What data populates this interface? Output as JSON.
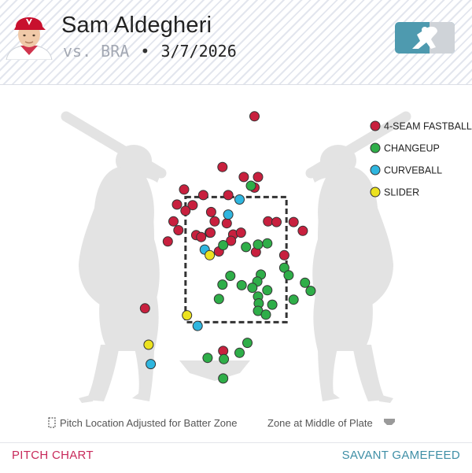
{
  "header": {
    "player_name": "Sam Aldegheri",
    "opponent_prefix": "vs. BRA",
    "separator": "•",
    "date": "3/7/2026",
    "team_cap_color": "#c8102e",
    "logo_color": "#4e9aaf"
  },
  "colors": {
    "four_seam": "#c8203e",
    "changeup": "#2fae49",
    "curveball": "#2fb6df",
    "slider": "#ece21f",
    "silhouette": "#e3e3e3",
    "point_stroke": "#333333"
  },
  "chart_data": {
    "type": "scatter",
    "title": "",
    "xlabel": "",
    "ylabel": "",
    "x_unit": "plate_x (ft, catcher view)",
    "y_unit": "plate_z (ft)",
    "xlim": [
      -3.32,
      3.32
    ],
    "ylim": [
      -0.42,
      5.29
    ],
    "strike_zone": {
      "x": [
        -0.71,
        0.71
      ],
      "z": [
        1.5,
        3.5
      ]
    },
    "legend_position": "top-right",
    "series": [
      {
        "name": "4-SEAM FASTBALL",
        "key": "four_seam",
        "points": [
          [
            0.26,
            4.79
          ],
          [
            -0.19,
            3.98
          ],
          [
            0.11,
            3.82
          ],
          [
            0.31,
            3.82
          ],
          [
            0.26,
            3.65
          ],
          [
            -0.73,
            3.62
          ],
          [
            -0.46,
            3.53
          ],
          [
            -0.11,
            3.53
          ],
          [
            -0.83,
            3.38
          ],
          [
            -0.61,
            3.37
          ],
          [
            -0.71,
            3.28
          ],
          [
            -0.35,
            3.26
          ],
          [
            -0.88,
            3.11
          ],
          [
            -0.3,
            3.11
          ],
          [
            -0.13,
            3.08
          ],
          [
            0.45,
            3.11
          ],
          [
            0.81,
            3.1
          ],
          [
            -0.81,
            2.97
          ],
          [
            -0.37,
            2.93
          ],
          [
            -0.56,
            2.89
          ],
          [
            -0.49,
            2.86
          ],
          [
            -0.36,
            2.93
          ],
          [
            -0.04,
            2.9
          ],
          [
            0.07,
            2.93
          ],
          [
            0.57,
            3.1
          ],
          [
            0.94,
            2.96
          ],
          [
            -0.96,
            2.79
          ],
          [
            0.28,
            2.62
          ],
          [
            -0.24,
            2.63
          ],
          [
            0.68,
            2.57
          ],
          [
            -1.28,
            1.72
          ],
          [
            -0.18,
            1.04
          ],
          [
            -0.07,
            2.8
          ]
        ]
      },
      {
        "name": "CHANGEUP",
        "key": "changeup",
        "points": [
          [
            0.21,
            3.68
          ],
          [
            0.31,
            2.74
          ],
          [
            0.44,
            2.76
          ],
          [
            0.14,
            2.7
          ],
          [
            -0.18,
            2.73
          ],
          [
            0.68,
            2.37
          ],
          [
            -0.08,
            2.24
          ],
          [
            0.35,
            2.26
          ],
          [
            0.3,
            2.15
          ],
          [
            0.23,
            2.05
          ],
          [
            0.74,
            2.25
          ],
          [
            0.97,
            2.13
          ],
          [
            -0.19,
            2.1
          ],
          [
            0.08,
            2.09
          ],
          [
            0.31,
            1.91
          ],
          [
            0.44,
            2.01
          ],
          [
            1.05,
            2.0
          ],
          [
            0.32,
            1.8
          ],
          [
            0.51,
            1.78
          ],
          [
            0.81,
            1.86
          ],
          [
            -0.24,
            1.87
          ],
          [
            0.31,
            1.68
          ],
          [
            0.42,
            1.62
          ],
          [
            0.16,
            1.17
          ],
          [
            0.05,
            1.01
          ],
          [
            -0.4,
            0.93
          ],
          [
            -0.17,
            0.91
          ],
          [
            -0.18,
            0.6
          ]
        ]
      },
      {
        "name": "CURVEBALL",
        "key": "curveball",
        "points": [
          [
            0.05,
            3.46
          ],
          [
            -0.11,
            3.22
          ],
          [
            -0.44,
            2.66
          ],
          [
            -0.54,
            1.44
          ],
          [
            -1.2,
            0.83
          ]
        ]
      },
      {
        "name": "SLIDER",
        "key": "slider",
        "points": [
          [
            -0.37,
            2.57
          ],
          [
            -0.69,
            1.61
          ],
          [
            -1.23,
            1.14
          ]
        ]
      }
    ]
  },
  "legend_items": [
    {
      "label": "4-SEAM FASTBALL",
      "key": "four_seam"
    },
    {
      "label": "CHANGEUP",
      "key": "changeup"
    },
    {
      "label": "CURVEBALL",
      "key": "curveball"
    },
    {
      "label": "SLIDER",
      "key": "slider"
    }
  ],
  "notes": {
    "adjusted_zone": "Pitch Location Adjusted for Batter Zone",
    "middle_zone": "Zone at Middle of Plate"
  },
  "footer": {
    "left_label": "PITCH CHART",
    "right_label": "SAVANT GAMEFEED"
  }
}
